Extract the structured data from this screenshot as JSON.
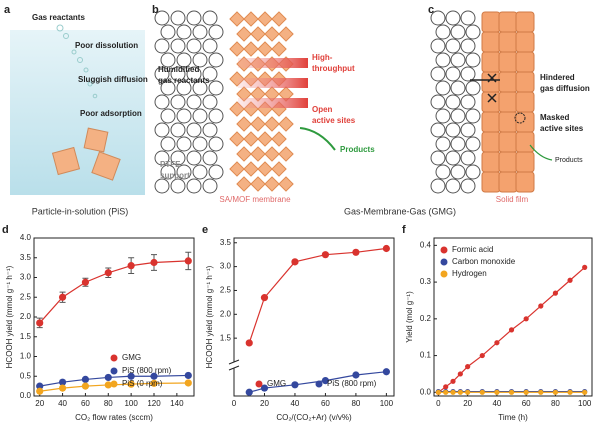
{
  "panels": {
    "a": {
      "label": "a",
      "gas": "Gas reactants",
      "dissolution": "Poor dissolution",
      "diffusion": "Sluggish diffusion",
      "adsorption": "Poor adsorption",
      "caption": "Particle-in-solution (PiS)"
    },
    "b": {
      "label": "b",
      "humidified": [
        "Humidified",
        "gas reactants"
      ],
      "throughput": [
        "High-",
        "throughput"
      ],
      "open": [
        "Open",
        "active sites"
      ],
      "products": "Products",
      "ptfe": [
        "PTFE",
        "support"
      ],
      "membrane": "SA/MOF membrane",
      "caption": "Gas-Membrane-Gas (GMG)"
    },
    "c": {
      "label": "c",
      "hindered": [
        "Hindered",
        "gas diffusion"
      ],
      "masked": [
        "Masked",
        "active sites"
      ],
      "products": "Products",
      "film": "Solid film"
    }
  },
  "chart_data": [
    {
      "type": "line",
      "panel": "d",
      "ylabel": "HCOOH yield (mmol g⁻¹ h⁻¹)",
      "xlabel": "CO₂ flow rates (sccm)",
      "x": [
        20,
        40,
        60,
        80,
        100,
        120,
        150
      ],
      "xlim": [
        15,
        155
      ],
      "xticks": [
        20,
        40,
        60,
        80,
        100,
        120,
        140
      ],
      "ylim": [
        0,
        4
      ],
      "yticks": [
        {
          "value": 0,
          "label": "0.0"
        },
        0.5,
        {
          "value": 1,
          "label": "1.0"
        },
        1.5,
        {
          "value": 2,
          "label": "2.0"
        },
        2.5,
        {
          "value": 3,
          "label": "3.0"
        },
        3.5,
        {
          "value": 4,
          "label": "4.0"
        }
      ],
      "legend": "lower right",
      "series": [
        {
          "name": "GMG",
          "color": "#d9332e",
          "values": [
            1.85,
            2.5,
            2.88,
            3.12,
            3.3,
            3.38,
            3.42
          ],
          "errors": [
            0.12,
            0.13,
            0.1,
            0.12,
            0.2,
            0.2,
            0.22
          ]
        },
        {
          "name": "PiS (800 rpm)",
          "color": "#34489e",
          "values": [
            0.25,
            0.35,
            0.42,
            0.47,
            0.5,
            0.5,
            0.52
          ]
        },
        {
          "name": "PiS (0 rpm)",
          "color": "#f2a51f",
          "values": [
            0.12,
            0.2,
            0.25,
            0.28,
            0.3,
            0.32,
            0.33
          ]
        }
      ]
    },
    {
      "type": "line",
      "panel": "e",
      "ylabel": "HCOOH yield (mmol g⁻¹ h⁻¹)",
      "xlabel": "CO₂/(CO₂+Ar) (v/v%)",
      "x": [
        10,
        20,
        40,
        60,
        80,
        100
      ],
      "xlim": [
        0,
        105
      ],
      "xticks": [
        0,
        20,
        40,
        60,
        80,
        100
      ],
      "ylim": [
        1.0,
        3.6
      ],
      "yticks": [
        1.5,
        {
          "value": 2,
          "label": "2.0"
        },
        2.5,
        {
          "value": 3,
          "label": "3.0"
        },
        3.5
      ],
      "ylim_lower": [
        0,
        0.6
      ],
      "legend": "lower center",
      "series": [
        {
          "name": "GMG",
          "color": "#d9332e",
          "values": [
            1.4,
            2.35,
            3.1,
            3.25,
            3.3,
            3.38
          ]
        },
        {
          "name": "PiS (800 rpm)",
          "color": "#34489e",
          "values": [
            0.08,
            0.17,
            0.24,
            0.33,
            0.45,
            0.52
          ]
        }
      ]
    },
    {
      "type": "line",
      "panel": "f",
      "ylabel": "Yield (mol g⁻¹)",
      "xlabel": "Time (h)",
      "x": [
        0,
        5,
        10,
        15,
        20,
        30,
        40,
        50,
        60,
        70,
        80,
        90,
        100
      ],
      "xlim": [
        -3,
        105
      ],
      "xticks": [
        0,
        20,
        40,
        60,
        80,
        100
      ],
      "ylim": [
        -0.01,
        0.42
      ],
      "yticks": [
        {
          "value": 0,
          "label": "0.0"
        },
        0.1,
        0.2,
        0.3,
        0.4
      ],
      "legend": "upper left",
      "series": [
        {
          "name": "Formic acid",
          "color": "#d9332e",
          "values": [
            0,
            0.015,
            0.03,
            0.05,
            0.07,
            0.1,
            0.135,
            0.17,
            0.2,
            0.235,
            0.27,
            0.305,
            0.34
          ]
        },
        {
          "name": "Carbon monoxide",
          "color": "#34489e",
          "values": [
            0.002,
            0.002,
            0.002,
            0.002,
            0.002,
            0.002,
            0.002,
            0.002,
            0.002,
            0.002,
            0.002,
            0.002,
            0.002
          ]
        },
        {
          "name": "Hydrogen",
          "color": "#f2a51f",
          "values": [
            0,
            0,
            0,
            0,
            0,
            0,
            0,
            0,
            0,
            0,
            0,
            0,
            0
          ]
        }
      ]
    }
  ]
}
